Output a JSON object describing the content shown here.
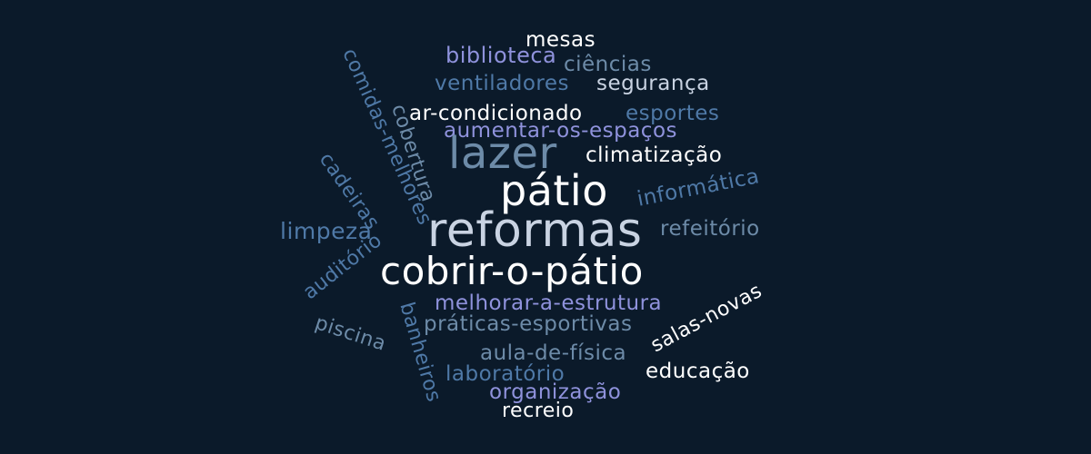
{
  "colors": {
    "background": "#0b1a2a",
    "white": "#ffffff",
    "pale": "#e6ecf5",
    "lavender": "#8f92dc",
    "steel": "#4f79a7",
    "slate": "#6d8ba8"
  },
  "words": [
    {
      "text": "mesas",
      "color": "#ffffff"
    },
    {
      "text": "biblioteca",
      "color": "#8f92dc"
    },
    {
      "text": "ciências",
      "color": "#6d8ba8"
    },
    {
      "text": "ventiladores",
      "color": "#4f79a7"
    },
    {
      "text": "segurança",
      "color": "#c9d3e2"
    },
    {
      "text": "ar-condicionado",
      "color": "#ffffff"
    },
    {
      "text": "esportes",
      "color": "#4f79a7"
    },
    {
      "text": "aumentar-os-espaços",
      "color": "#8f92dc"
    },
    {
      "text": "lazer",
      "color": "#6d8ba8"
    },
    {
      "text": "climatização",
      "color": "#ffffff"
    },
    {
      "text": "pátio",
      "color": "#ffffff"
    },
    {
      "text": "informática",
      "color": "#4f79a7"
    },
    {
      "text": "reformas",
      "color": "#c9d3e2"
    },
    {
      "text": "refeitório",
      "color": "#6d8ba8"
    },
    {
      "text": "limpeza",
      "color": "#4f79a7"
    },
    {
      "text": "cobrir-o-pátio",
      "color": "#ffffff"
    },
    {
      "text": "melhorar-a-estrutura",
      "color": "#8f92dc"
    },
    {
      "text": "salas-novas",
      "color": "#ffffff"
    },
    {
      "text": "práticas-esportivas",
      "color": "#6d8ba8"
    },
    {
      "text": "aula-de-física",
      "color": "#6d8ba8"
    },
    {
      "text": "educação",
      "color": "#ffffff"
    },
    {
      "text": "laboratório",
      "color": "#4f79a7"
    },
    {
      "text": "organização",
      "color": "#8f92dc"
    },
    {
      "text": "recreio",
      "color": "#ffffff"
    },
    {
      "text": "piscina",
      "color": "#6d8ba8"
    },
    {
      "text": "auditório",
      "color": "#4f79a7"
    },
    {
      "text": "cadeiras",
      "color": "#4f79a7"
    },
    {
      "text": "comidas-melhores",
      "color": "#4f79a7"
    },
    {
      "text": "cobertura",
      "color": "#6d8ba8"
    },
    {
      "text": "banheiros",
      "color": "#4f79a7"
    }
  ]
}
